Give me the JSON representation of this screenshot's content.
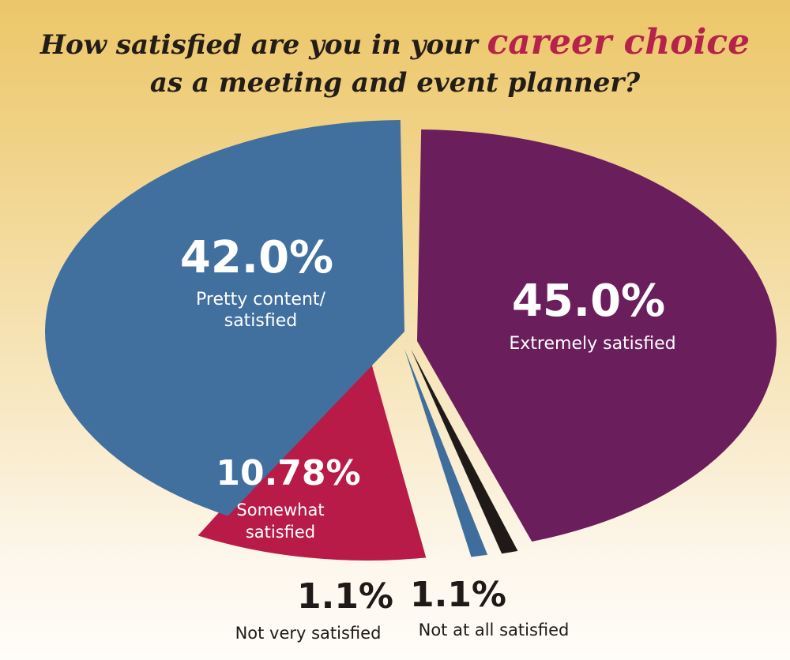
{
  "title": {
    "line1_before": "How satisfied are you in your",
    "line1_accent": "career choice",
    "line2": "as a meeting and event planner?"
  },
  "colors": {
    "accent": "#b5234a",
    "title_text": "#241d17",
    "divider": "#f7e7bf"
  },
  "chart_data": {
    "type": "pie",
    "slices": [
      {
        "label": "Extremely satisfied",
        "label_lines": [
          "Extremely satisfied"
        ],
        "value": 45.0,
        "display": "45.0%",
        "color": "#6b1e5c",
        "label_color": "#ffffff"
      },
      {
        "label": "Not at all satisfied",
        "label_lines": [
          "Not at all satisfied"
        ],
        "value": 1.1,
        "display": "1.1%",
        "color": "#1f1a17",
        "label_color": "#1f1a17"
      },
      {
        "label": "Not very satisfied",
        "label_lines": [
          "Not very satisfied"
        ],
        "value": 1.1,
        "display": "1.1%",
        "color": "#3f6e9c",
        "label_color": "#1f1a17"
      },
      {
        "label": "Somewhat satisfied",
        "label_lines": [
          "Somewhat",
          "satisfied"
        ],
        "value": 10.78,
        "display": "10.78%",
        "color": "#b81b48",
        "label_color": "#ffffff"
      },
      {
        "label": "Pretty content/ satisfied",
        "label_lines": [
          "Pretty content/",
          "satisfied"
        ],
        "value": 42.0,
        "display": "42.0%",
        "color": "#41709f",
        "label_color": "#ffffff"
      }
    ]
  }
}
